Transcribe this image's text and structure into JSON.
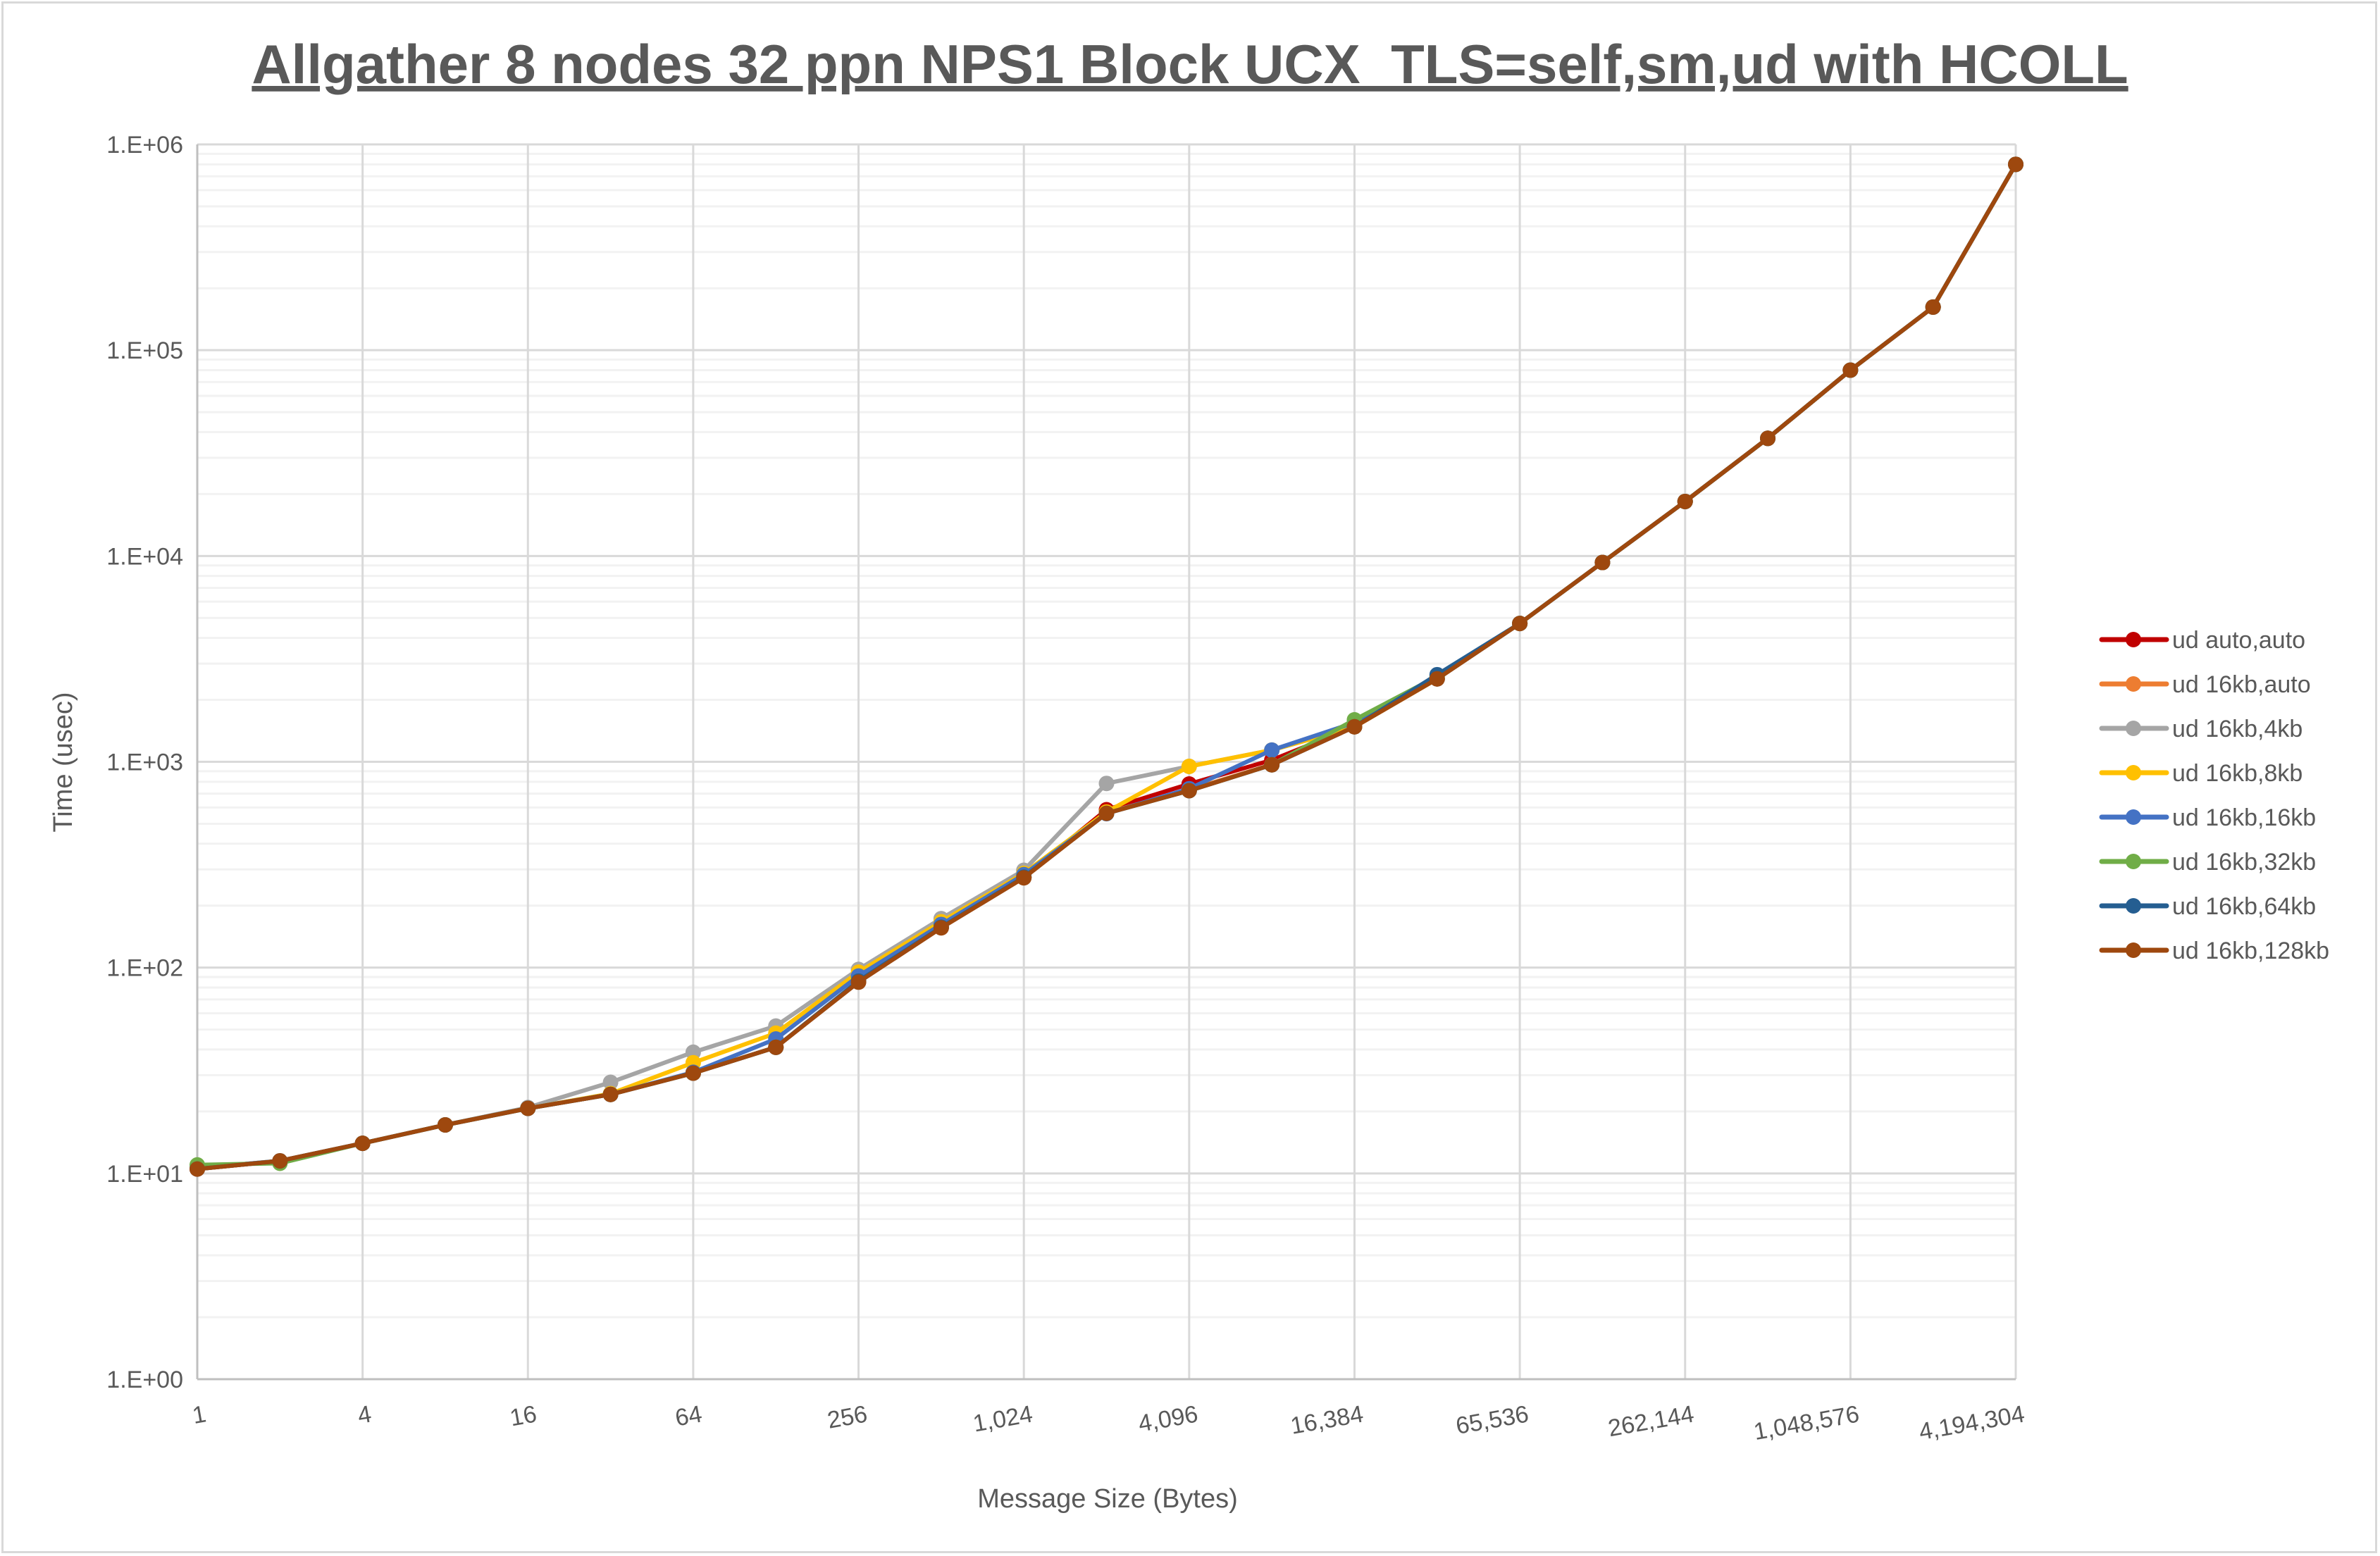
{
  "chart_data": {
    "type": "line",
    "title": "Allgather 8 nodes 32 ppn NPS1 Block UCX_TLS=self,sm,ud with HCOLL",
    "xlabel": "Message Size (Bytes)",
    "ylabel": "Time (usec)",
    "x_scale": "log2",
    "y_scale": "log10",
    "xlim": [
      1,
      4194304
    ],
    "ylim": [
      1,
      1000000
    ],
    "grid": true,
    "legend_position": "right",
    "x": [
      1,
      2,
      4,
      8,
      16,
      32,
      64,
      128,
      256,
      512,
      1024,
      2048,
      4096,
      8192,
      16384,
      32768,
      65536,
      131072,
      262144,
      524288,
      1048576,
      2097152,
      4194304
    ],
    "x_tick_labels": [
      "1",
      "4",
      "16",
      "64",
      "256",
      "1,024",
      "4,096",
      "16,384",
      "65,536",
      "262,144",
      "1,048,576",
      "4,194,304"
    ],
    "x_tick_values": [
      1,
      4,
      16,
      64,
      256,
      1024,
      4096,
      16384,
      65536,
      262144,
      1048576,
      4194304
    ],
    "y_tick_labels": [
      "1.E+00",
      "1.E+01",
      "1.E+02",
      "1.E+03",
      "1.E+04",
      "1.E+05",
      "1.E+06"
    ],
    "y_tick_values": [
      1,
      10,
      100,
      1000,
      10000,
      100000,
      1000000
    ],
    "series": [
      {
        "name": "ud auto,auto",
        "color": "#c00000",
        "values": [
          10.5,
          11.5,
          14.0,
          17.2,
          20.7,
          24.2,
          30.7,
          41,
          86,
          157,
          275,
          585,
          780,
          1020,
          1480,
          2530,
          4700,
          9300,
          18400,
          37300,
          80000,
          162000,
          800000
        ]
      },
      {
        "name": "ud 16kb,auto",
        "color": "#ed7d31",
        "values": [
          10.5,
          11.5,
          14.0,
          17.2,
          20.7,
          24.2,
          30.7,
          41,
          86,
          157,
          275,
          565,
          730,
          970,
          1480,
          2530,
          4700,
          9300,
          18400,
          37300,
          80000,
          162000,
          800000
        ]
      },
      {
        "name": "ud 16kb,4kb",
        "color": "#a5a5a5",
        "values": [
          10.6,
          11.5,
          14.0,
          17.2,
          20.9,
          27.7,
          38.8,
          52,
          98,
          173,
          297,
          785,
          950,
          1140,
          1480,
          2530,
          4700,
          9300,
          18400,
          37300,
          80000,
          162000,
          800000
        ]
      },
      {
        "name": "ud 16kb,8kb",
        "color": "#ffc000",
        "values": [
          10.6,
          11.5,
          14.0,
          17.2,
          20.7,
          24.4,
          34.5,
          48,
          95,
          167,
          287,
          570,
          950,
          1140,
          1480,
          2530,
          4700,
          9300,
          18400,
          37300,
          80000,
          162000,
          800000
        ]
      },
      {
        "name": "ud 16kb,16kb",
        "color": "#4472c4",
        "values": [
          10.6,
          11.5,
          14.0,
          17.2,
          20.7,
          24.2,
          31,
          45,
          91,
          162,
          283,
          560,
          740,
          1140,
          1550,
          2530,
          4700,
          9300,
          18400,
          37300,
          80000,
          162000,
          800000
        ]
      },
      {
        "name": "ud 16kb,32kb",
        "color": "#70ad47",
        "values": [
          11.0,
          11.2,
          14.0,
          17.2,
          20.7,
          24.2,
          30.7,
          41,
          86,
          157,
          275,
          562,
          724,
          967,
          1600,
          2600,
          4700,
          9300,
          18400,
          37300,
          80000,
          162000,
          800000
        ]
      },
      {
        "name": "ud 16kb,64kb",
        "color": "#255e91",
        "values": [
          10.5,
          11.5,
          14.0,
          17.2,
          20.7,
          24.2,
          30.7,
          41,
          86,
          157,
          275,
          562,
          724,
          967,
          1480,
          2650,
          4700,
          9300,
          18400,
          37300,
          80000,
          162000,
          800000
        ]
      },
      {
        "name": "ud 16kb,128kb",
        "color": "#9e480e",
        "values": [
          10.5,
          11.5,
          14.0,
          17.2,
          20.7,
          24.2,
          30.7,
          41,
          85,
          156,
          273,
          562,
          724,
          967,
          1480,
          2530,
          4700,
          9300,
          18400,
          37300,
          80000,
          162000,
          800000
        ]
      }
    ]
  }
}
